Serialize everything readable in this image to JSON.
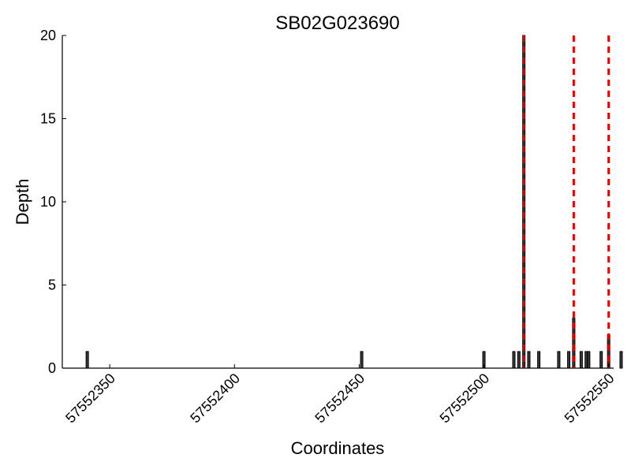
{
  "chart_data": {
    "type": "bar",
    "title": "SB02G023690",
    "xlabel": "Coordinates",
    "ylabel": "Depth",
    "xlim": [
      57552331,
      57552552
    ],
    "ylim": [
      0,
      20
    ],
    "xticks": [
      57552350,
      57552400,
      57552450,
      57552500,
      57552550
    ],
    "yticks": [
      0,
      5,
      10,
      15,
      20
    ],
    "bars": [
      {
        "x": 57552341,
        "y": 1
      },
      {
        "x": 57552451,
        "y": 1
      },
      {
        "x": 57552500,
        "y": 1
      },
      {
        "x": 57552512,
        "y": 1
      },
      {
        "x": 57552514,
        "y": 1
      },
      {
        "x": 57552516,
        "y": 20
      },
      {
        "x": 57552518,
        "y": 1
      },
      {
        "x": 57552522,
        "y": 1
      },
      {
        "x": 57552530,
        "y": 1
      },
      {
        "x": 57552534,
        "y": 1
      },
      {
        "x": 57552536,
        "y": 3
      },
      {
        "x": 57552539,
        "y": 1
      },
      {
        "x": 57552541,
        "y": 1
      },
      {
        "x": 57552542,
        "y": 1
      },
      {
        "x": 57552547,
        "y": 1
      },
      {
        "x": 57552550,
        "y": 2
      },
      {
        "x": 57552555,
        "y": 1
      }
    ],
    "markers": [
      57552516,
      57552536,
      57552550
    ],
    "marker_color": "#e00000",
    "bar_color": "#3b3b3b",
    "grid": false,
    "legend": "none"
  }
}
